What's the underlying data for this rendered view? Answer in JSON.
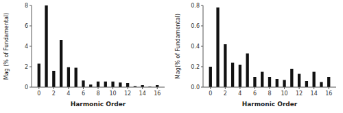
{
  "chart_data": [
    {
      "type": "bar",
      "x_label": "Harmonic Order",
      "y_label": "Mag (% of Fundamental)",
      "x": [
        0,
        1,
        2,
        3,
        4,
        5,
        6,
        7,
        8,
        9,
        10,
        11,
        12,
        13,
        14,
        15,
        16
      ],
      "values": [
        2.3,
        8.0,
        1.6,
        4.6,
        1.95,
        1.9,
        0.65,
        0.25,
        0.55,
        0.55,
        0.55,
        0.45,
        0.4,
        0.1,
        0.2,
        0.05,
        0.2
      ],
      "color": "#111111",
      "xlim": [
        -1,
        17
      ],
      "xticks": [
        0,
        2,
        4,
        6,
        8,
        10,
        12,
        14,
        16
      ],
      "ylim": [
        0,
        8
      ],
      "yticks": [
        0,
        2,
        4,
        6,
        8
      ],
      "grid": false
    },
    {
      "type": "bar",
      "x_label": "Harmonic Order",
      "y_label": "Mag(% of Fundamental)",
      "x": [
        0,
        1,
        2,
        3,
        4,
        5,
        6,
        7,
        8,
        9,
        10,
        11,
        12,
        13,
        14,
        15,
        16
      ],
      "values": [
        0.2,
        0.78,
        0.42,
        0.24,
        0.22,
        0.33,
        0.1,
        0.15,
        0.1,
        0.08,
        0.07,
        0.18,
        0.13,
        0.06,
        0.15,
        0.05,
        0.1
      ],
      "color": "#111111",
      "xlim": [
        -1,
        17
      ],
      "xticks": [
        0,
        2,
        4,
        6,
        8,
        10,
        12,
        14,
        16
      ],
      "ylim": [
        0,
        0.8
      ],
      "yticks": [
        {
          "value": 0.0,
          "label": "0.0"
        },
        0.2,
        0.4,
        0.6,
        0.8
      ],
      "grid": false
    }
  ]
}
